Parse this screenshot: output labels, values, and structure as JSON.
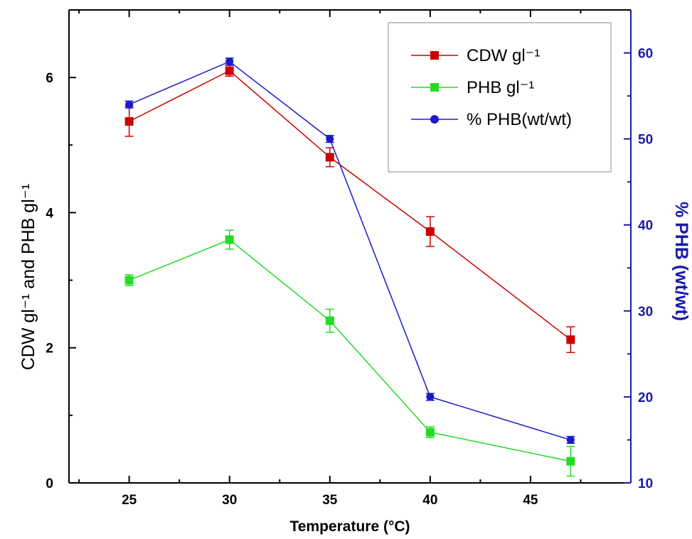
{
  "chart_data": {
    "type": "line",
    "xlabel": "Temperature (°C)",
    "ylabel": "CDW gl⁻¹ and PHB gl⁻¹",
    "y2label": "% PHB (wt/wt)",
    "xlim": [
      22,
      50
    ],
    "ylim": [
      0,
      7
    ],
    "y2lim": [
      10,
      65
    ],
    "xticks": [
      25,
      30,
      35,
      40,
      45
    ],
    "yticks": [
      0,
      2,
      4,
      6
    ],
    "y2ticks": [
      10,
      20,
      30,
      40,
      50,
      60
    ],
    "legend_position": "top-right",
    "series": [
      {
        "name": "CDW gl⁻¹",
        "axis": "left",
        "color": "#cc0000",
        "marker": "square",
        "x": [
          25,
          30,
          35,
          40,
          47
        ],
        "values": [
          5.35,
          6.1,
          4.82,
          3.72,
          2.12
        ],
        "errors": [
          0.22,
          0.08,
          0.14,
          0.22,
          0.19
        ]
      },
      {
        "name": "PHB gl⁻¹",
        "axis": "left",
        "color": "#22dd22",
        "marker": "square",
        "x": [
          25,
          30,
          35,
          40,
          47
        ],
        "values": [
          3.0,
          3.6,
          2.4,
          0.75,
          0.32
        ],
        "errors": [
          0.08,
          0.14,
          0.17,
          0.08,
          0.22
        ]
      },
      {
        "name": "% PHB(wt/wt)",
        "axis": "right",
        "color": "#1a1acc",
        "marker": "circle",
        "x": [
          25,
          30,
          35,
          40,
          47
        ],
        "values": [
          54,
          59,
          50,
          20,
          15
        ],
        "errors": [
          0.4,
          0.4,
          0.4,
          0.4,
          0.4
        ]
      }
    ]
  }
}
